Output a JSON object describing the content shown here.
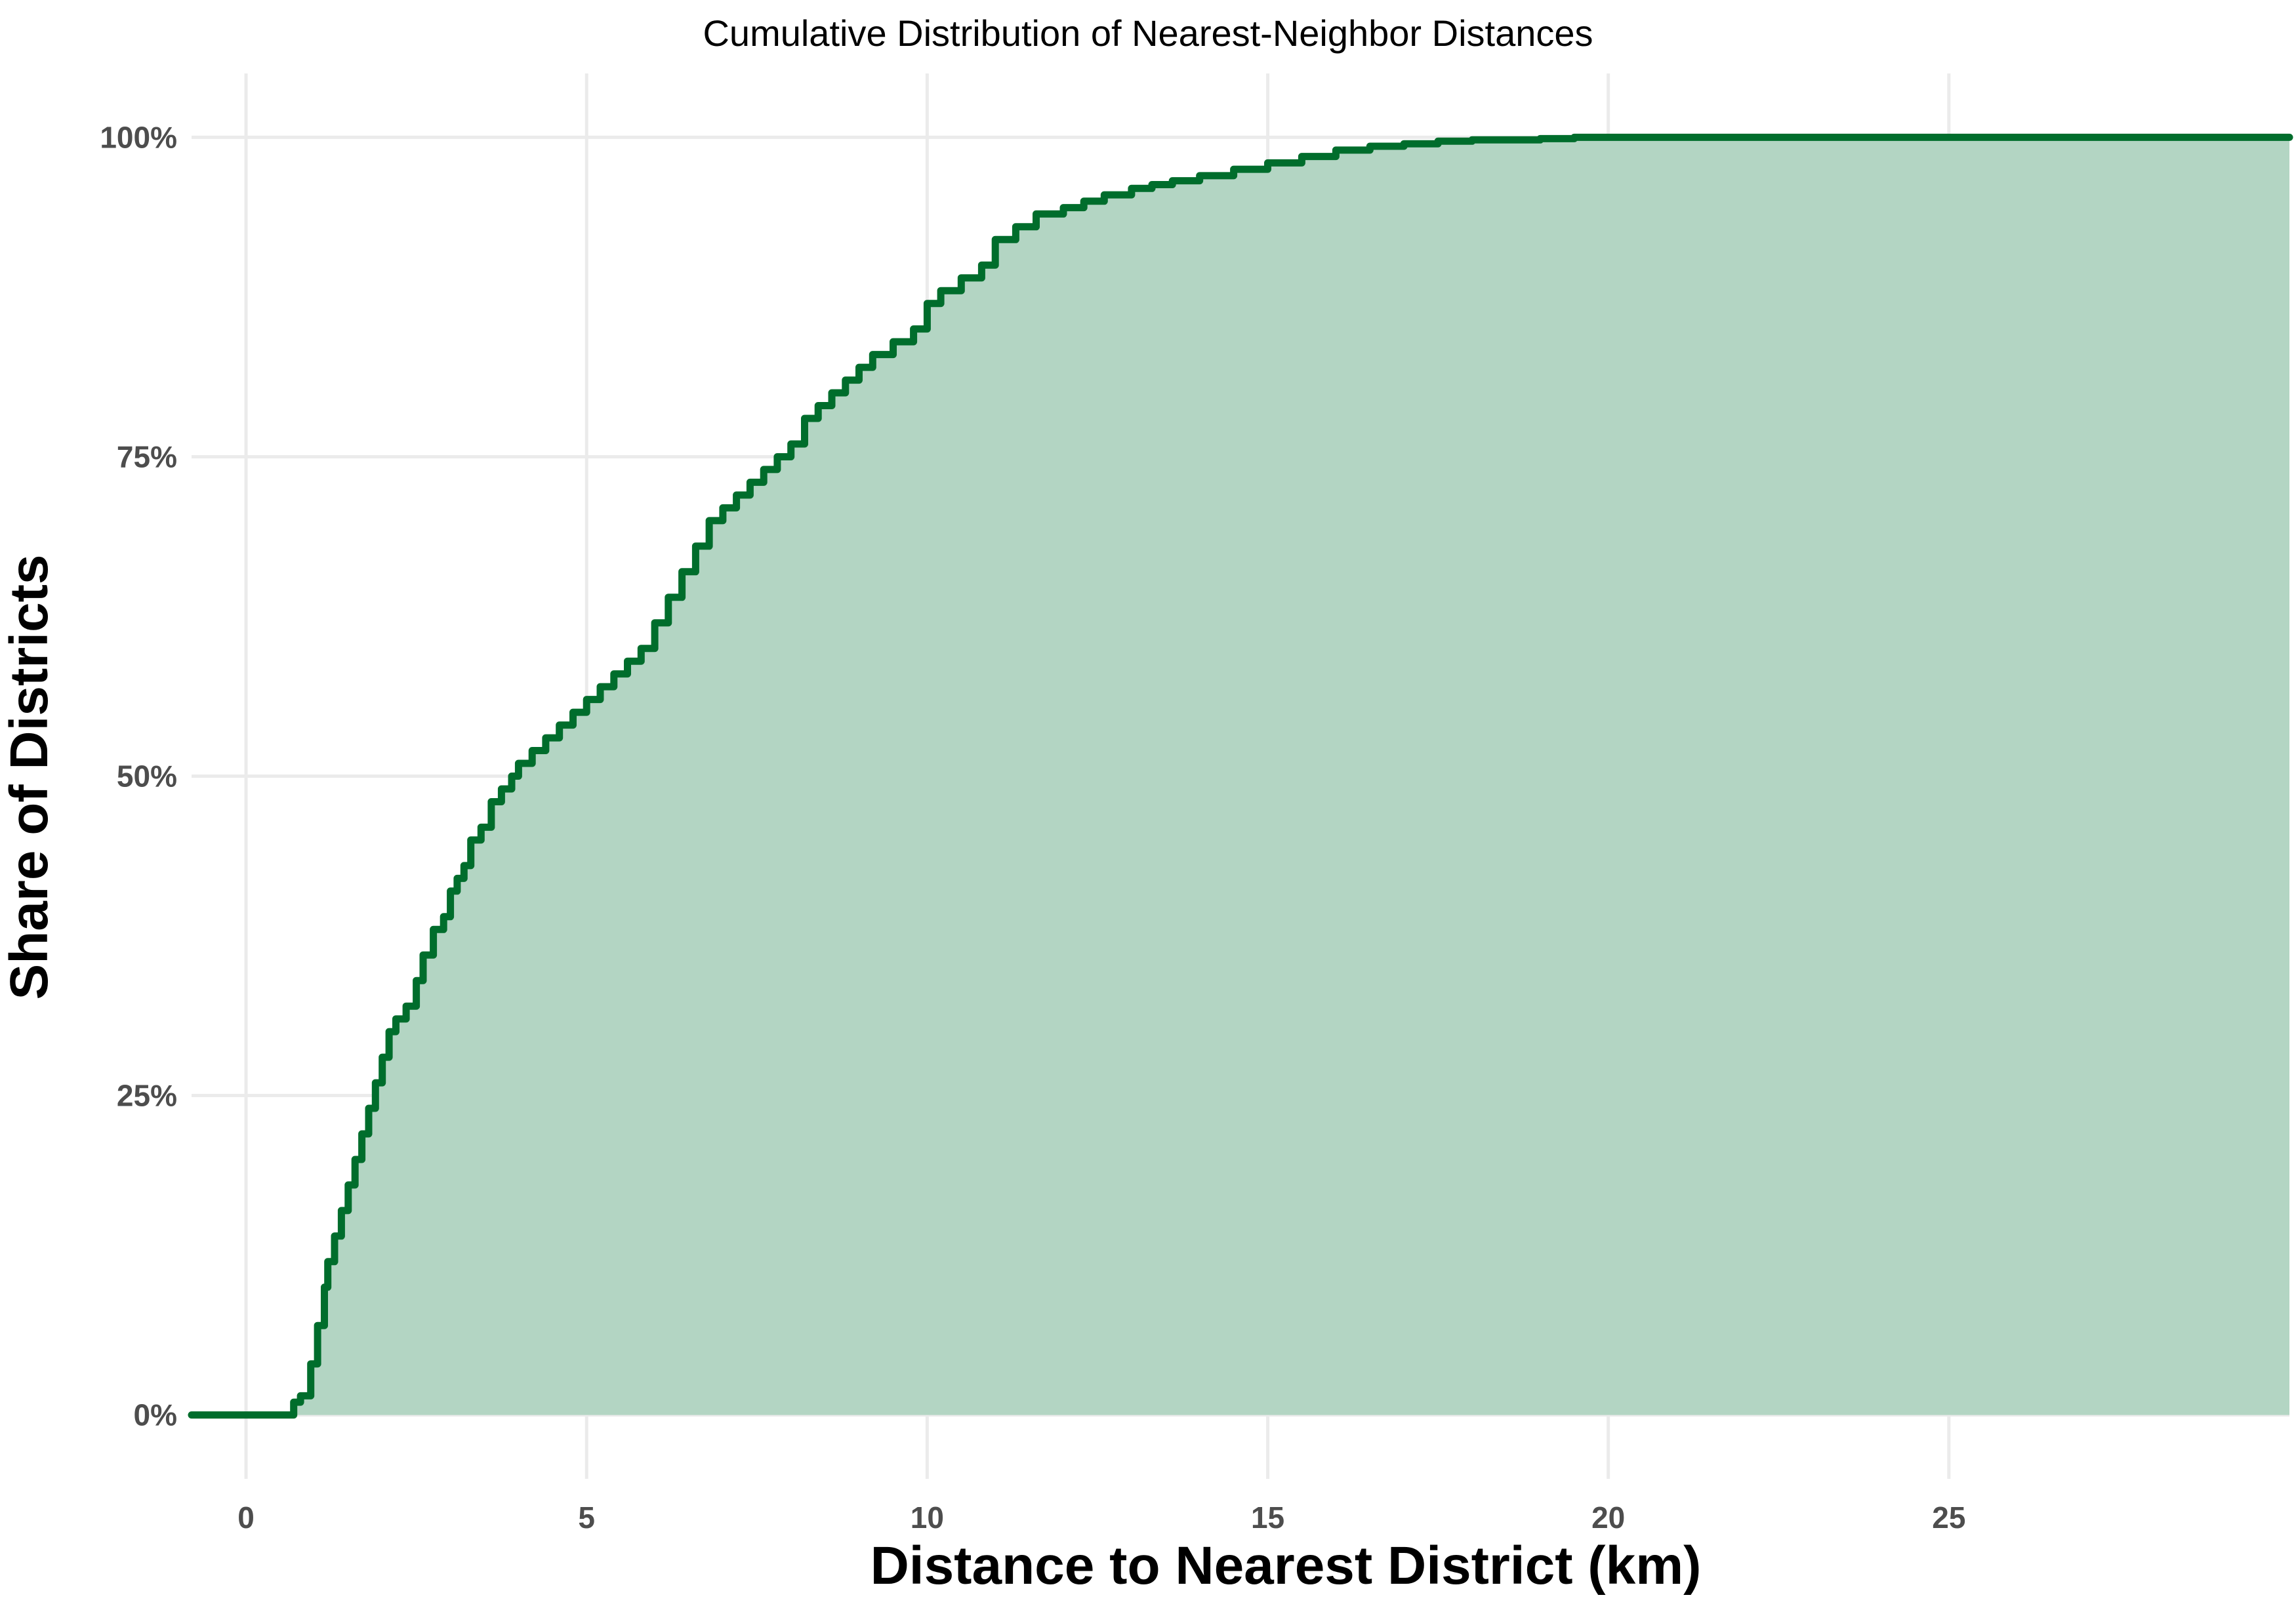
{
  "chart_data": {
    "type": "area",
    "title": "Cumulative Distribution of Nearest-Neighbor Distances",
    "xlabel": "Distance to Nearest District (km)",
    "ylabel": "Share of Districts",
    "xlim": [
      -0.8,
      30
    ],
    "ylim": [
      -0.05,
      1.05
    ],
    "x_ticks": [
      0,
      5,
      10,
      15,
      20,
      25
    ],
    "x_tick_labels": [
      "0",
      "5",
      "10",
      "15",
      "20",
      "25"
    ],
    "y_ticks": [
      0,
      0.25,
      0.5,
      0.75,
      1.0
    ],
    "y_tick_labels": [
      "0%",
      "25%",
      "50%",
      "75%",
      "100%"
    ],
    "grid": true,
    "legend": "none",
    "colors": {
      "line": "#006d2c",
      "fill": "#b3d5c3",
      "grid": "#ebebeb",
      "tick_text": "#4d4d4d"
    },
    "series": [
      {
        "x": [
          -0.8,
          0.0,
          0.55,
          0.7,
          0.8,
          0.95,
          1.05,
          1.15,
          1.2,
          1.3,
          1.4,
          1.5,
          1.6,
          1.7,
          1.8,
          1.9,
          2.0,
          2.1,
          2.2,
          2.35,
          2.5,
          2.6,
          2.75,
          2.9,
          3.0,
          3.1,
          3.2,
          3.3,
          3.45,
          3.6,
          3.75,
          3.9,
          4.0,
          4.2,
          4.4,
          4.6,
          4.8,
          5.0,
          5.2,
          5.4,
          5.6,
          5.8,
          6.0,
          6.2,
          6.4,
          6.6,
          6.8,
          7.0,
          7.2,
          7.4,
          7.6,
          7.8,
          8.0,
          8.2,
          8.4,
          8.6,
          8.8,
          9.0,
          9.2,
          9.5,
          9.8,
          10.0,
          10.2,
          10.5,
          10.8,
          11.0,
          11.3,
          11.6,
          12.0,
          12.3,
          12.6,
          13.0,
          13.3,
          13.6,
          14.0,
          14.5,
          15.0,
          15.5,
          16.0,
          16.5,
          17.0,
          17.5,
          18.0,
          18.5,
          19.0,
          19.5,
          20.0,
          21.0,
          22.0,
          23.0,
          24.0,
          25.0,
          26.0,
          27.0,
          28.0,
          28.5,
          29.0,
          30.0
        ],
        "y": [
          0.0,
          0.0,
          0.0,
          0.01,
          0.015,
          0.04,
          0.07,
          0.1,
          0.12,
          0.14,
          0.16,
          0.18,
          0.2,
          0.22,
          0.24,
          0.26,
          0.28,
          0.3,
          0.31,
          0.32,
          0.34,
          0.36,
          0.38,
          0.39,
          0.41,
          0.42,
          0.43,
          0.45,
          0.46,
          0.48,
          0.49,
          0.5,
          0.51,
          0.52,
          0.53,
          0.54,
          0.55,
          0.56,
          0.57,
          0.58,
          0.59,
          0.6,
          0.62,
          0.64,
          0.66,
          0.68,
          0.7,
          0.71,
          0.72,
          0.73,
          0.74,
          0.75,
          0.76,
          0.78,
          0.79,
          0.8,
          0.81,
          0.82,
          0.83,
          0.84,
          0.85,
          0.87,
          0.88,
          0.89,
          0.9,
          0.92,
          0.93,
          0.94,
          0.945,
          0.95,
          0.955,
          0.96,
          0.963,
          0.966,
          0.97,
          0.975,
          0.98,
          0.985,
          0.99,
          0.993,
          0.995,
          0.997,
          0.998,
          0.998,
          0.999,
          1.0,
          1.0,
          1.0,
          1.0,
          1.0,
          1.0,
          1.0,
          1.0,
          1.0,
          1.0,
          1.0,
          1.0,
          1.0
        ]
      }
    ]
  }
}
